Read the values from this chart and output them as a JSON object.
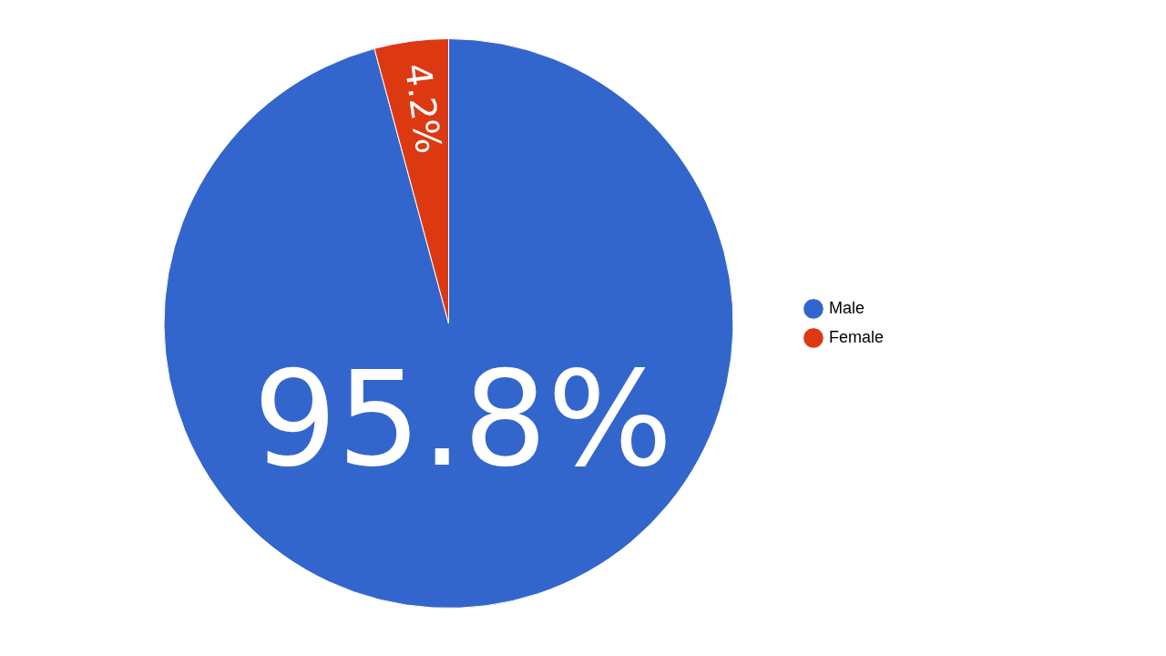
{
  "chart_data": {
    "type": "pie",
    "categories": [
      "Male",
      "Female"
    ],
    "values": [
      95.8,
      4.2
    ],
    "colors": [
      "#3366cc",
      "#dc3912"
    ],
    "value_labels": [
      "95.8%",
      "4.2%"
    ],
    "legend": "right"
  }
}
